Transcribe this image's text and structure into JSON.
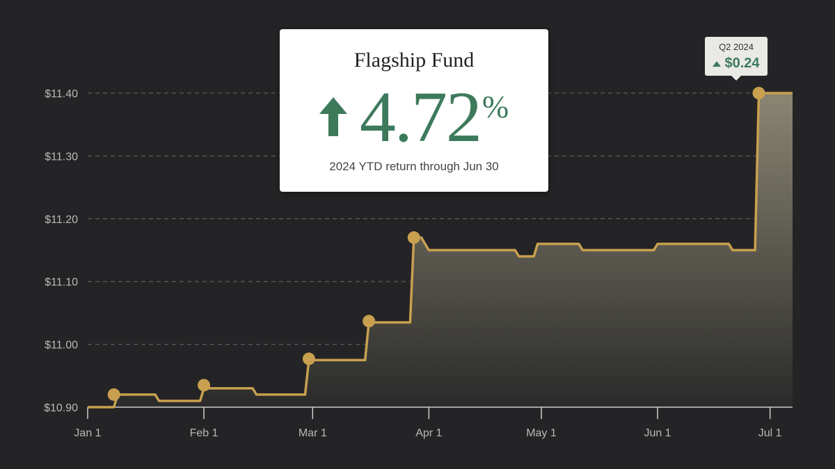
{
  "chart_data": {
    "type": "line",
    "title": "Flagship Fund",
    "headline": {
      "value": "4.72",
      "unit": "%",
      "direction": "up",
      "caption": "2024 YTD return through Jun 30"
    },
    "callout": {
      "period": "Q2 2024",
      "change": "$0.24",
      "direction": "up",
      "date": "2024-06-28"
    },
    "x_ticks": [
      {
        "date": "2024-01-01",
        "label": "Jan 1"
      },
      {
        "date": "2024-02-01",
        "label": "Feb 1"
      },
      {
        "date": "2024-03-01",
        "label": "Mar 1"
      },
      {
        "date": "2024-04-01",
        "label": "Apr 1"
      },
      {
        "date": "2024-05-01",
        "label": "May 1"
      },
      {
        "date": "2024-06-01",
        "label": "Jun 1"
      },
      {
        "date": "2024-07-01",
        "label": "Jul 1"
      }
    ],
    "y_ticks": [
      {
        "value": 10.9,
        "label": "$10.90"
      },
      {
        "value": 11.0,
        "label": "$11.00"
      },
      {
        "value": 11.1,
        "label": "$11.10"
      },
      {
        "value": 11.2,
        "label": "$11.20"
      },
      {
        "value": 11.3,
        "label": "$11.30"
      },
      {
        "value": 11.4,
        "label": "$11.40"
      }
    ],
    "xlim": [
      "2024-01-01",
      "2024-07-07"
    ],
    "ylim": [
      10.9,
      11.4
    ],
    "grid": "horizontal-dashed",
    "series": [
      {
        "x": [
          "2024-01-01",
          "2024-01-08",
          "2024-01-09",
          "2024-01-19",
          "2024-01-20",
          "2024-01-31",
          "2024-02-01",
          "2024-02-14",
          "2024-02-15",
          "2024-02-28",
          "2024-02-29",
          "2024-03-15",
          "2024-03-16",
          "2024-03-27",
          "2024-03-28",
          "2024-03-30",
          "2024-03-31",
          "2024-04-01",
          "2024-04-24",
          "2024-04-25",
          "2024-04-29",
          "2024-04-30",
          "2024-05-11",
          "2024-05-12",
          "2024-05-31",
          "2024-06-01",
          "2024-06-20",
          "2024-06-21",
          "2024-06-27",
          "2024-06-28",
          "2024-07-07"
        ],
        "y": [
          10.9,
          10.9,
          10.92,
          10.92,
          10.91,
          10.91,
          10.93,
          10.93,
          10.92,
          10.92,
          10.975,
          10.975,
          11.035,
          11.035,
          11.17,
          11.17,
          11.16,
          11.15,
          11.15,
          11.14,
          11.14,
          11.16,
          11.16,
          11.15,
          11.15,
          11.16,
          11.16,
          11.15,
          11.15,
          11.4,
          11.4
        ]
      }
    ],
    "markers": [
      {
        "date": "2024-01-08",
        "value": 10.92
      },
      {
        "date": "2024-02-01",
        "value": 10.935
      },
      {
        "date": "2024-02-29",
        "value": 10.977
      },
      {
        "date": "2024-03-16",
        "value": 11.037
      },
      {
        "date": "2024-03-28",
        "value": 11.17
      },
      {
        "date": "2024-06-28",
        "value": 11.4
      }
    ],
    "colors": {
      "line": "#c9a04f",
      "fill_top": "#8a8672",
      "fill_bottom": "#2a2a2a",
      "grid": "#6a6a6a",
      "axis": "#cfcfcf",
      "tick_text": "#b9b9b9",
      "accent_green": "#3d7a5c"
    }
  }
}
